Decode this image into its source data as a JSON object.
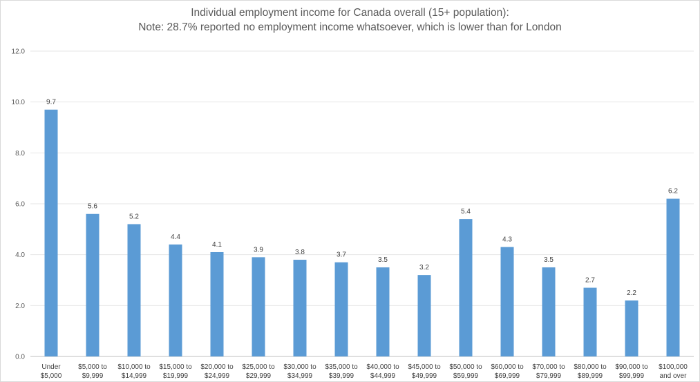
{
  "chart_data": {
    "type": "bar",
    "title": "Individual employment income for Canada overall (15+ population):",
    "subtitle": "Note: 28.7% reported no employment income whatsoever, which is lower than for London",
    "categories": [
      [
        "Under",
        "$5,000"
      ],
      [
        "$5,000 to",
        "$9,999"
      ],
      [
        "$10,000 to",
        "$14,999"
      ],
      [
        "$15,000 to",
        "$19,999"
      ],
      [
        "$20,000 to",
        "$24,999"
      ],
      [
        "$25,000 to",
        "$29,999"
      ],
      [
        "$30,000 to",
        "$34,999"
      ],
      [
        "$35,000 to",
        "$39,999"
      ],
      [
        "$40,000 to",
        "$44,999"
      ],
      [
        "$45,000 to",
        "$49,999"
      ],
      [
        "$50,000 to",
        "$59,999"
      ],
      [
        "$60,000 to",
        "$69,999"
      ],
      [
        "$70,000 to",
        "$79,999"
      ],
      [
        "$80,000 to",
        "$89,999"
      ],
      [
        "$90,000 to",
        "$99,999"
      ],
      [
        "$100,000",
        "and over"
      ]
    ],
    "values": [
      9.7,
      5.6,
      5.2,
      4.4,
      4.1,
      3.9,
      3.8,
      3.7,
      3.5,
      3.2,
      5.4,
      4.3,
      3.5,
      2.7,
      2.2,
      6.2
    ],
    "value_labels": [
      "9.7",
      "5.6",
      "5.2",
      "4.4",
      "4.1",
      "3.9",
      "3.8",
      "3.7",
      "3.5",
      "3.2",
      "5.4",
      "4.3",
      "3.5",
      "2.7",
      "2.2",
      "6.2"
    ],
    "yticks": [
      "0.0",
      "2.0",
      "4.0",
      "6.0",
      "8.0",
      "10.0",
      "12.0"
    ],
    "ylim": [
      0,
      12
    ],
    "grid": true,
    "legend": "none",
    "bar_color": "#5b9bd5",
    "grid_color": "#e6e6e6"
  }
}
